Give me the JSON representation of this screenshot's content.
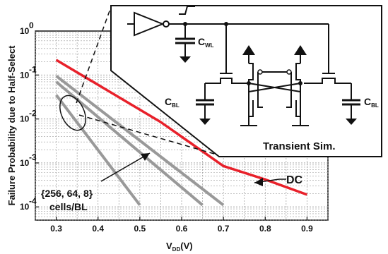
{
  "chart_data": {
    "type": "line",
    "xlabel_main": "V",
    "xlabel_sub": "DD",
    "xlabel_unit": "(V)",
    "ylabel": "Failure Probability due to Half-Select",
    "x_ticks": [
      "0.3",
      "0.4",
      "0.5",
      "0.6",
      "0.7",
      "0.8",
      "0.9"
    ],
    "y_ticks": [
      {
        "base": "10",
        "exp": "0"
      },
      {
        "base": "10",
        "exp": "-1"
      },
      {
        "base": "10",
        "exp": "-2"
      },
      {
        "base": "10",
        "exp": "-3"
      },
      {
        "base": "10",
        "exp": "-4"
      }
    ],
    "xlim": [
      0.25,
      0.95
    ],
    "ylim": [
      5e-05,
      1
    ],
    "y_scale": "log",
    "grid": true,
    "series": [
      {
        "name": "DC",
        "color": "#e8202a",
        "x": [
          0.3,
          0.55,
          0.7,
          0.8,
          0.9
        ],
        "y": [
          0.22,
          0.0085,
          0.00085,
          0.00042,
          0.00019
        ]
      },
      {
        "color": "#999999",
        "x": [
          0.3,
          0.7
        ],
        "y": [
          0.095,
          0.00011
        ]
      },
      {
        "color": "#999999",
        "x": [
          0.3,
          0.65
        ],
        "y": [
          0.07,
          0.00011
        ]
      },
      {
        "color": "#999999",
        "x": [
          0.3,
          0.5
        ],
        "y": [
          0.035,
          0.00011
        ]
      }
    ],
    "annotations": {
      "dc_label": "DC",
      "cells_label_line1": "{256, 64, 8}",
      "cells_label_line2": "cells/BL",
      "inset_caption": "Transient Sim.",
      "c_wl": "C",
      "c_wl_sub": "WL",
      "c_bl_left": "C",
      "c_bl_left_sub": "BL",
      "c_bl_right": "C",
      "c_bl_right_sub": "BL"
    }
  }
}
